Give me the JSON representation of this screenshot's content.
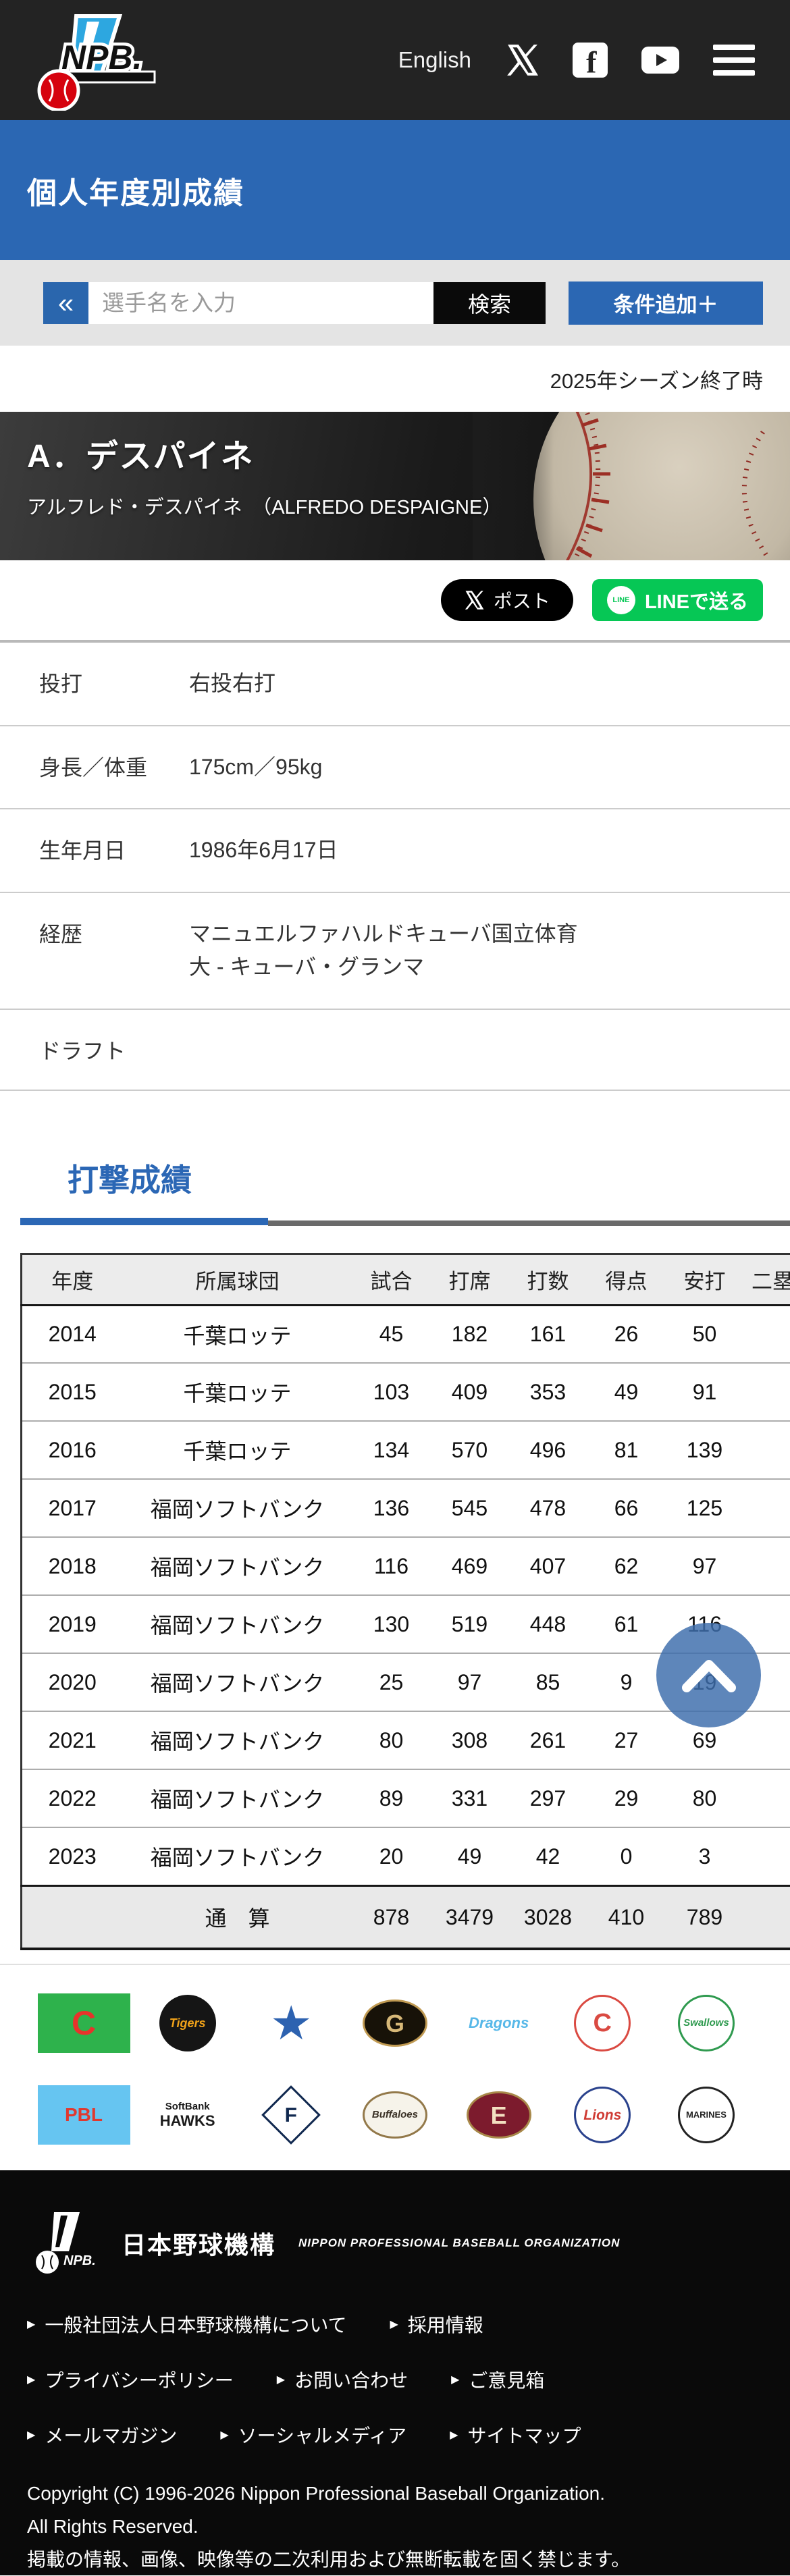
{
  "topbar": {
    "language_link": "English"
  },
  "title_banner": {
    "title": "個人年度別成績"
  },
  "search": {
    "collapse_button": "«",
    "placeholder": "選手名を入力",
    "search_button": "検索",
    "add_condition_button": "条件追加＋"
  },
  "season_note": "2025年シーズン終了時",
  "player": {
    "display_name": "A．デスパイネ",
    "full_name": "アルフレド・デスパイネ　（ALFREDO DESPAIGNE）"
  },
  "share": {
    "x_post": "ポスト",
    "line": "LINEで送る",
    "line_icon_text": "LINE"
  },
  "profile": {
    "rows": [
      {
        "label": "投打",
        "value": "右投右打"
      },
      {
        "label": "身長／体重",
        "value": "175cm／95kg"
      },
      {
        "label": "生年月日",
        "value": "1986年6月17日"
      },
      {
        "label": "経歴",
        "value": "マニュエルファハルドキューバ国立体育\n大 - キューバ・グランマ"
      },
      {
        "label": "ドラフト",
        "value": ""
      }
    ]
  },
  "batting": {
    "heading": "打撃成績",
    "columns": [
      "年度",
      "所属球団",
      "試合",
      "打席",
      "打数",
      "得点",
      "安打",
      "二塁打"
    ],
    "rows": [
      [
        "2014",
        "千葉ロッテ",
        "45",
        "182",
        "161",
        "26",
        "50",
        ""
      ],
      [
        "2015",
        "千葉ロッテ",
        "103",
        "409",
        "353",
        "49",
        "91",
        ""
      ],
      [
        "2016",
        "千葉ロッテ",
        "134",
        "570",
        "496",
        "81",
        "139",
        ""
      ],
      [
        "2017",
        "福岡ソフトバンク",
        "136",
        "545",
        "478",
        "66",
        "125",
        ""
      ],
      [
        "2018",
        "福岡ソフトバンク",
        "116",
        "469",
        "407",
        "62",
        "97",
        ""
      ],
      [
        "2019",
        "福岡ソフトバンク",
        "130",
        "519",
        "448",
        "61",
        "116",
        ""
      ],
      [
        "2020",
        "福岡ソフトバンク",
        "25",
        "97",
        "85",
        "9",
        "19",
        ""
      ],
      [
        "2021",
        "福岡ソフトバンク",
        "80",
        "308",
        "261",
        "27",
        "69",
        ""
      ],
      [
        "2022",
        "福岡ソフトバンク",
        "89",
        "331",
        "297",
        "29",
        "80",
        ""
      ],
      [
        "2023",
        "福岡ソフトバンク",
        "20",
        "49",
        "42",
        "0",
        "3",
        ""
      ]
    ],
    "total_row": [
      "",
      "通　算",
      "878",
      "3479",
      "3028",
      "410",
      "789",
      ""
    ]
  },
  "colors": {
    "accent_blue": "#2b67b3",
    "line_green": "#06c755",
    "topbar_black": "#232323",
    "back_to_top": "rgba(61,109,172,0.83)"
  },
  "team_logos": [
    {
      "name": "central-league-logo",
      "shape": "rect",
      "bg": "#2eb24c",
      "text": "C",
      "color": "#e7332b",
      "size": 50
    },
    {
      "name": "hanshin-tigers-logo",
      "shape": "circle",
      "bg": "#151515",
      "text": "Tigers",
      "color": "#f0a219",
      "size": 18,
      "italic": true
    },
    {
      "name": "dena-baystars-logo",
      "shape": "plain",
      "text": "★",
      "color": "#2d62b0",
      "size": 70
    },
    {
      "name": "yomiuri-giants-logo",
      "shape": "ellipse",
      "bg": "#171208",
      "border": "#c09a52",
      "text": "G",
      "color": "#d7b878",
      "size": 36
    },
    {
      "name": "chunichi-dragons-logo",
      "shape": "plain",
      "text": "Dragons",
      "color": "#57b8e8",
      "size": 22,
      "italic": true
    },
    {
      "name": "hiroshima-carp-logo",
      "shape": "circle",
      "bg": "#ffffff",
      "border": "#da4a42",
      "text": "C",
      "color": "#da4a42",
      "size": 38
    },
    {
      "name": "yakult-swallows-logo",
      "shape": "circle",
      "bg": "#ffffff",
      "border": "#2f9a4f",
      "text": "Swallows",
      "color": "#2f9a4f",
      "size": 15,
      "italic": true
    },
    {
      "name": "pacific-league-logo",
      "shape": "rect",
      "bg": "#66c5f1",
      "text": "PBL",
      "color": "#e0392f",
      "size": 28
    },
    {
      "name": "softbank-hawks-logo",
      "shape": "plain",
      "top": "SoftBank",
      "topColor": "#1b1b1b",
      "text": "HAWKS",
      "color": "#1b1b1b",
      "size": 22
    },
    {
      "name": "nipponham-fighters-logo",
      "shape": "diamond",
      "bg": "#ffffff",
      "border": "#10284f",
      "text": "F",
      "color": "#10284f",
      "size": 30
    },
    {
      "name": "orix-buffaloes-logo",
      "shape": "ellipse",
      "bg": "#f6f3ea",
      "border": "#93794a",
      "text": "Buffaloes",
      "color": "#3a3126",
      "size": 15,
      "italic": true
    },
    {
      "name": "rakuten-eagles-logo",
      "shape": "ellipse",
      "bg": "#7c1b2d",
      "border": "#a8894a",
      "text": "E",
      "color": "#f2dfc0",
      "size": 36
    },
    {
      "name": "seibu-lions-logo",
      "shape": "circle",
      "bg": "#ffffff",
      "border": "#29418c",
      "text": "Lions",
      "color": "#cf3a33",
      "size": 21,
      "italic": true
    },
    {
      "name": "chiba-lotte-marines-logo",
      "shape": "circle",
      "bg": "#ffffff",
      "border": "#222222",
      "text": "MARINES",
      "color": "#222222",
      "size": 13
    }
  ],
  "footer": {
    "org_jp": "日本野球機構",
    "org_en": "NIPPON PROFESSIONAL BASEBALL ORGANIZATION",
    "links_row1": [
      "一般社団法人日本野球機構について",
      "採用情報"
    ],
    "links_row2": [
      "プライバシーポリシー",
      "お問い合わせ",
      "ご意見箱"
    ],
    "links_row3": [
      "メールマガジン",
      "ソーシャルメディア",
      "サイトマップ"
    ],
    "copyright_1": "Copyright (C) 1996-2026 Nippon Professional Baseball Organization.",
    "copyright_2": "All Rights Reserved.",
    "copyright_3": "掲載の情報、画像、映像等の二次利用および無断転載を固く禁じます。"
  }
}
